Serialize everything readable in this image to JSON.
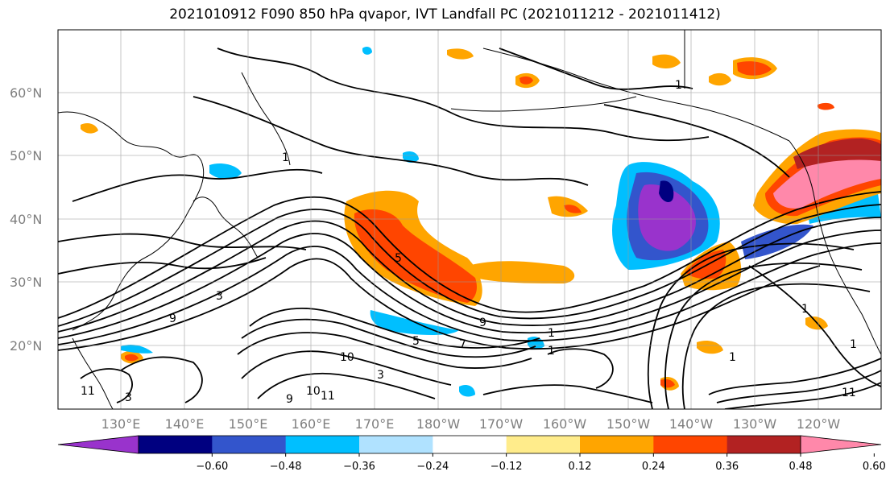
{
  "title": "2021010912 F090 850 hPa qvapor, IVT Landfall PC (2021011212 - 2021011412)",
  "lat_labels": [
    "60°N",
    "50°N",
    "40°N",
    "30°N",
    "20°N"
  ],
  "lon_labels": [
    "130°E",
    "140°E",
    "150°E",
    "160°E",
    "170°E",
    "180°W",
    "170°W",
    "160°W",
    "150°W",
    "140°W",
    "130°W",
    "120°W"
  ],
  "colorbar": {
    "colors": [
      "#9933cc",
      "#000080",
      "#3355cc",
      "#00bfff",
      "#b0e2ff",
      "#ffffff",
      "#ffec8b",
      "#ffa500",
      "#ff4500",
      "#b22222",
      "#ff88aa"
    ],
    "tick_labels": [
      "−0.60",
      "−0.48",
      "−0.36",
      "−0.24",
      "−0.12",
      "0.12",
      "0.24",
      "0.36",
      "0.48",
      "0.60"
    ],
    "extend": "both"
  },
  "contour_labels": [
    "1",
    "1",
    "3",
    "3",
    "5",
    "5",
    "7",
    "9",
    "9",
    "9",
    "10",
    "10",
    "11",
    "11",
    "1",
    "1",
    "1",
    "1",
    "1",
    "3",
    "11"
  ]
}
